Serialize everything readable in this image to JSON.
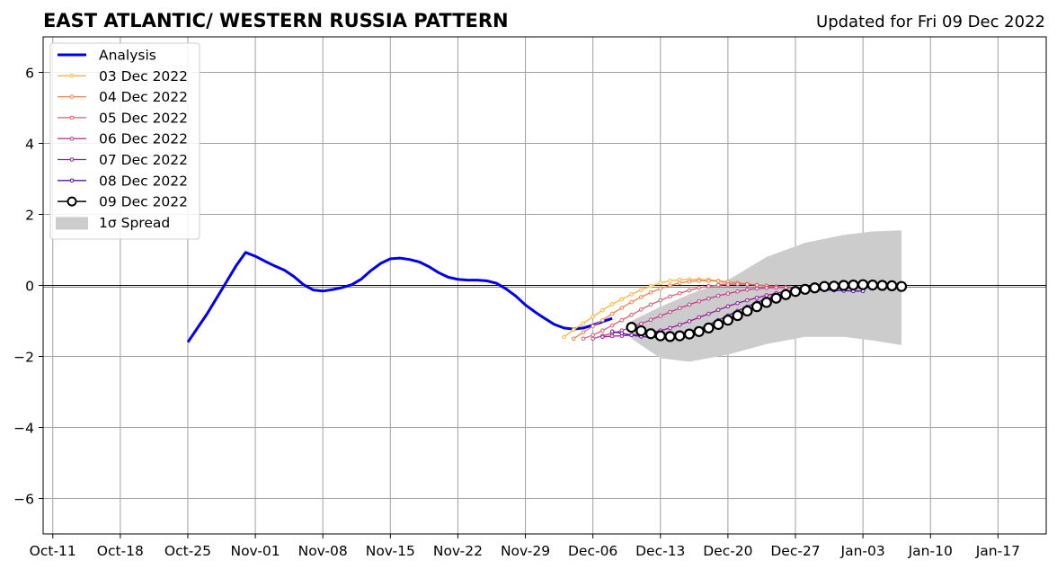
{
  "chart_data": {
    "type": "line",
    "title": "EAST ATLANTIC/ WESTERN RUSSIA PATTERN",
    "subtitle": "Updated for Fri 09 Dec 2022",
    "xlabel": "",
    "ylabel": "",
    "ylim": [
      -7,
      7
    ],
    "yticks": [
      -6,
      -4,
      -2,
      0,
      2,
      4,
      6
    ],
    "ytick_labels": [
      "−6",
      "−4",
      "−2",
      "0",
      "2",
      "4",
      "6"
    ],
    "xlim": [
      "2022-10-10",
      "2023-01-22"
    ],
    "xticks": [
      "2022-10-11",
      "2022-10-18",
      "2022-10-25",
      "2022-11-01",
      "2022-11-08",
      "2022-11-15",
      "2022-11-22",
      "2022-11-29",
      "2022-12-06",
      "2022-12-13",
      "2022-12-20",
      "2022-12-27",
      "2023-01-03",
      "2023-01-10",
      "2023-01-17"
    ],
    "xtick_labels": [
      "Oct-11",
      "Oct-18",
      "Oct-25",
      "Nov-01",
      "Nov-08",
      "Nov-15",
      "Nov-22",
      "Nov-29",
      "Dec-06",
      "Dec-13",
      "Dec-20",
      "Dec-27",
      "Jan-03",
      "Jan-10",
      "Jan-17"
    ],
    "grid": true,
    "legend_position": "top-left",
    "zero_line": true,
    "analysis": {
      "name": "Analysis",
      "color": "#0000ee",
      "start": "2022-10-25",
      "values": [
        -1.6,
        -1.2,
        -0.8,
        -0.35,
        0.1,
        0.55,
        0.93,
        0.82,
        0.68,
        0.55,
        0.43,
        0.25,
        0.02,
        -0.13,
        -0.16,
        -0.12,
        -0.06,
        0.02,
        0.18,
        0.42,
        0.62,
        0.75,
        0.77,
        0.73,
        0.66,
        0.53,
        0.36,
        0.23,
        0.17,
        0.15,
        0.15,
        0.13,
        0.06,
        -0.1,
        -0.3,
        -0.55,
        -0.75,
        -0.93,
        -1.1,
        -1.2,
        -1.23,
        -1.2,
        -1.12,
        -1.02,
        -0.93
      ]
    },
    "forecasts": [
      {
        "name": "03 Dec 2022",
        "color": "#f9b43a",
        "start": "2022-12-03",
        "values": [
          -1.45,
          -1.25,
          -1.07,
          -0.88,
          -0.7,
          -0.53,
          -0.39,
          -0.25,
          -0.13,
          -0.02,
          0.07,
          0.13,
          0.16,
          0.17,
          0.17,
          0.16,
          0.13,
          0.1,
          0.07,
          0.04,
          0.02,
          0.0
        ]
      },
      {
        "name": "04 Dec 2022",
        "color": "#f0834a",
        "start": "2022-12-04",
        "values": [
          -1.5,
          -1.32,
          -1.15,
          -0.98,
          -0.8,
          -0.63,
          -0.47,
          -0.33,
          -0.2,
          -0.09,
          0.0,
          0.07,
          0.11,
          0.13,
          0.13,
          0.12,
          0.1,
          0.07,
          0.04,
          0.01,
          -0.01,
          -0.03
        ]
      },
      {
        "name": "05 Dec 2022",
        "color": "#e05b6b",
        "start": "2022-12-05",
        "values": [
          -1.5,
          -1.4,
          -1.27,
          -1.13,
          -0.98,
          -0.83,
          -0.68,
          -0.54,
          -0.42,
          -0.31,
          -0.22,
          -0.14,
          -0.07,
          -0.02,
          0.01,
          0.03,
          0.04,
          0.03,
          0.01,
          -0.01,
          -0.03,
          -0.05
        ]
      },
      {
        "name": "06 Dec 2022",
        "color": "#c13d89",
        "start": "2022-12-06",
        "values": [
          -1.5,
          -1.42,
          -1.35,
          -1.27,
          -1.18,
          -1.08,
          -0.97,
          -0.86,
          -0.75,
          -0.64,
          -0.54,
          -0.45,
          -0.37,
          -0.29,
          -0.23,
          -0.17,
          -0.12,
          -0.09,
          -0.07,
          -0.06,
          -0.06,
          -0.07
        ]
      },
      {
        "name": "07 Dec 2022",
        "color": "#95189b",
        "start": "2022-12-07",
        "values": [
          -1.45,
          -1.43,
          -1.42,
          -1.4,
          -1.37,
          -1.33,
          -1.27,
          -1.2,
          -1.11,
          -1.01,
          -0.9,
          -0.8,
          -0.69,
          -0.59,
          -0.5,
          -0.42,
          -0.35,
          -0.28,
          -0.22,
          -0.17,
          -0.14,
          -0.12
        ]
      },
      {
        "name": "08 Dec 2022",
        "color": "#5a0fa3",
        "start": "2022-12-08",
        "values": [
          -1.3,
          -1.35,
          -1.4,
          -1.44,
          -1.46,
          -1.46,
          -1.43,
          -1.38,
          -1.31,
          -1.22,
          -1.11,
          -0.98,
          -0.85,
          -0.72,
          -0.6,
          -0.48,
          -0.38,
          -0.3,
          -0.23,
          -0.18,
          -0.15,
          -0.13,
          -0.13,
          -0.14,
          -0.15,
          -0.16,
          -0.16
        ]
      },
      {
        "name": "09 Dec 2022",
        "color": "#000000",
        "start": "2022-12-10",
        "values": [
          -1.18,
          -1.28,
          -1.36,
          -1.42,
          -1.44,
          -1.42,
          -1.37,
          -1.3,
          -1.2,
          -1.1,
          -0.98,
          -0.85,
          -0.72,
          -0.6,
          -0.48,
          -0.36,
          -0.26,
          -0.17,
          -0.11,
          -0.07,
          -0.03,
          -0.02,
          0.0,
          0.01,
          0.02,
          0.01,
          0.0,
          -0.01,
          -0.03
        ]
      }
    ],
    "spread": {
      "name": "1σ Spread",
      "color": "#cccccc",
      "dates": [
        "2022-12-10",
        "2022-12-13",
        "2022-12-16",
        "2022-12-20",
        "2022-12-24",
        "2022-12-28",
        "2023-01-01",
        "2023-01-04",
        "2023-01-07"
      ],
      "upper": [
        -1.0,
        -0.6,
        -0.25,
        0.15,
        0.8,
        1.2,
        1.42,
        1.52,
        1.55
      ],
      "lower": [
        -1.5,
        -2.05,
        -2.15,
        -1.95,
        -1.65,
        -1.45,
        -1.45,
        -1.55,
        -1.68
      ]
    },
    "legend": [
      "Analysis",
      "03 Dec 2022",
      "04 Dec 2022",
      "05 Dec 2022",
      "06 Dec 2022",
      "07 Dec 2022",
      "08 Dec 2022",
      "09 Dec 2022",
      "1σ Spread"
    ]
  }
}
